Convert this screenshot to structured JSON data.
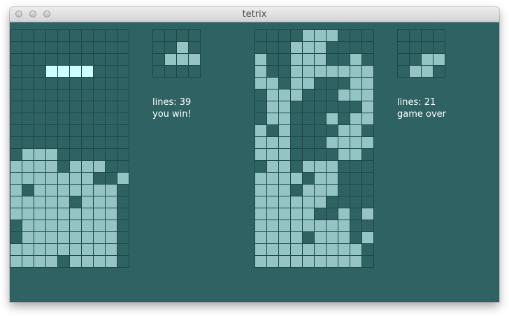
{
  "window": {
    "title": "tetrix"
  },
  "colors": {
    "background": "#2f6262",
    "filled": "#94c4c4",
    "active": "#ccffff",
    "grid": "#1e4848"
  },
  "player1": {
    "stats": {
      "lines_label": "lines: 39",
      "status": "you win!"
    },
    "board": [
      "0000000000",
      "0000000000",
      "0000000000",
      "0000000000",
      "0000000000",
      "0000000000",
      "0000000000",
      "0000000000",
      "0000000000",
      "0000000000",
      "0111000000",
      "1111011100",
      "1111111001",
      "1011111110",
      "1111101110",
      "1111111110",
      "0111111110",
      "0111111110",
      "1111111110",
      "1111011110"
    ],
    "active_piece": [
      [
        3,
        3
      ],
      [
        3,
        4
      ],
      [
        3,
        5
      ],
      [
        3,
        6
      ]
    ],
    "next_piece": [
      "0000",
      "0010",
      "0111",
      "0000"
    ]
  },
  "player2": {
    "stats": {
      "lines_label": "lines: 21",
      "status": "game over"
    },
    "board": [
      "0000111000",
      "0001110000",
      "1001110010",
      "1001111111",
      "1101100011",
      "0111000111",
      "0110000001",
      "0110001011",
      "1010000110",
      "1110001111",
      "1110000110",
      "0110111000",
      "1111011000",
      "1110111000",
      "1111110000",
      "1111100101",
      "1111111100",
      "1111011101",
      "1111111110",
      "1111111110"
    ],
    "next_piece": [
      "0000",
      "0000",
      "0011",
      "0110"
    ]
  }
}
